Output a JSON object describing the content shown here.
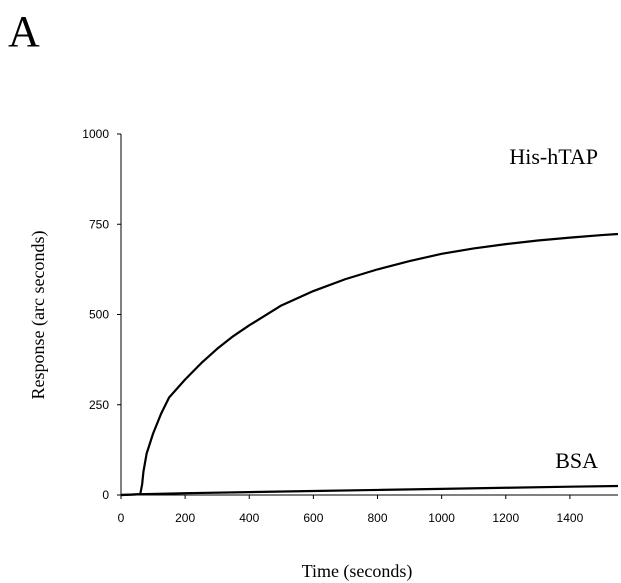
{
  "panel_label": "A",
  "chart_data": {
    "type": "line",
    "title": "",
    "xlabel": "Time (seconds)",
    "ylabel": "Response (arc seconds)",
    "xlim": [
      0,
      1550
    ],
    "ylim": [
      0,
      1000
    ],
    "x_ticks": [
      0,
      200,
      400,
      600,
      800,
      1000,
      1200,
      1400
    ],
    "y_ticks": [
      0,
      250,
      500,
      750,
      1000
    ],
    "grid": false,
    "series": [
      {
        "name": "His-hTAP",
        "color": "#000000",
        "x": [
          0,
          60,
          66,
          70,
          80,
          100,
          125,
          150,
          200,
          250,
          300,
          350,
          400,
          500,
          600,
          700,
          800,
          900,
          1000,
          1100,
          1200,
          1300,
          1400,
          1500,
          1550
        ],
        "y": [
          0,
          2,
          30,
          65,
          115,
          170,
          225,
          270,
          320,
          365,
          405,
          440,
          470,
          525,
          565,
          598,
          625,
          648,
          668,
          683,
          695,
          705,
          713,
          720,
          723
        ]
      },
      {
        "name": "BSA",
        "color": "#000000",
        "x": [
          0,
          60,
          200,
          400,
          600,
          800,
          1000,
          1200,
          1400,
          1550
        ],
        "y": [
          0,
          2,
          5,
          8,
          11,
          14,
          17,
          20,
          23,
          25
        ]
      }
    ]
  }
}
